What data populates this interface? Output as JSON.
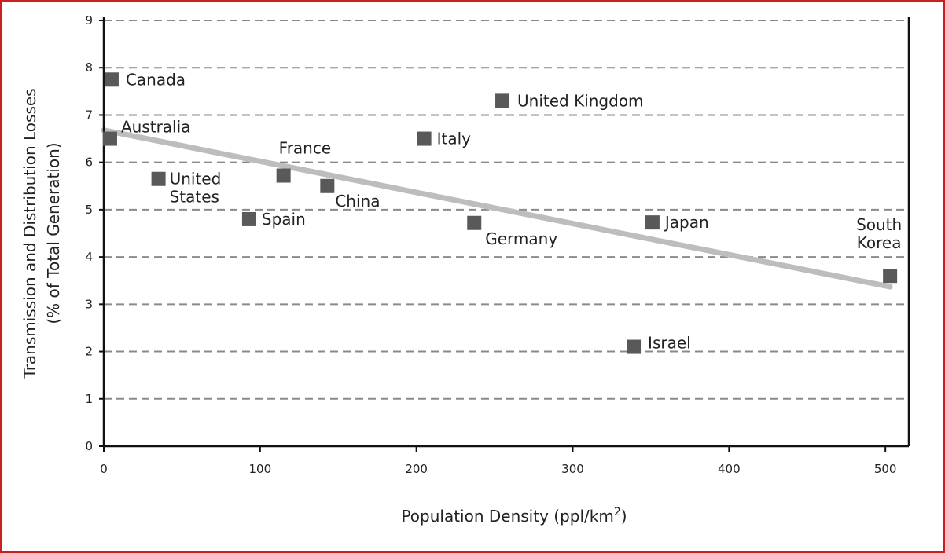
{
  "colors": {
    "frame": "#cc1f1f",
    "marker": "#595959",
    "trendline": "#bdbdbd",
    "grid": "#8a8a8a",
    "axis": "#111111",
    "text": "#222222"
  },
  "chart_data": {
    "type": "scatter",
    "title": "",
    "xlabel": "Population Density (ppl/km",
    "xlabel_sup": "2",
    "xlabel_end": ")",
    "ylabel_line1": "Transmission and Distribution Losses",
    "ylabel_line2": "(% of Total Generation)",
    "xlim": [
      0,
      515
    ],
    "ylim": [
      0,
      9
    ],
    "x_ticks": [
      0,
      100,
      200,
      300,
      400,
      500
    ],
    "y_ticks": [
      0,
      1,
      2,
      3,
      4,
      5,
      6,
      7,
      8,
      9
    ],
    "grid": "horizontal dashed",
    "points": [
      {
        "label": "Canada",
        "x": 5,
        "y": 7.75
      },
      {
        "label": "Australia",
        "x": 4,
        "y": 6.5
      },
      {
        "label": "United States",
        "label_lines": [
          "United",
          "States"
        ],
        "x": 35,
        "y": 5.65
      },
      {
        "label": "Spain",
        "x": 93,
        "y": 4.8
      },
      {
        "label": "France",
        "x": 115,
        "y": 5.72
      },
      {
        "label": "China",
        "x": 143,
        "y": 5.5
      },
      {
        "label": "Italy",
        "x": 205,
        "y": 6.5
      },
      {
        "label": "United Kingdom",
        "x": 255,
        "y": 7.3
      },
      {
        "label": "Germany",
        "x": 237,
        "y": 4.72
      },
      {
        "label": "Japan",
        "x": 351,
        "y": 4.73
      },
      {
        "label": "Israel",
        "x": 339,
        "y": 2.1
      },
      {
        "label": "South Korea",
        "label_lines": [
          "South",
          "Korea"
        ],
        "x": 503,
        "y": 3.6
      }
    ],
    "trendline": {
      "x": [
        0,
        503
      ],
      "y": [
        6.68,
        3.37
      ]
    }
  }
}
